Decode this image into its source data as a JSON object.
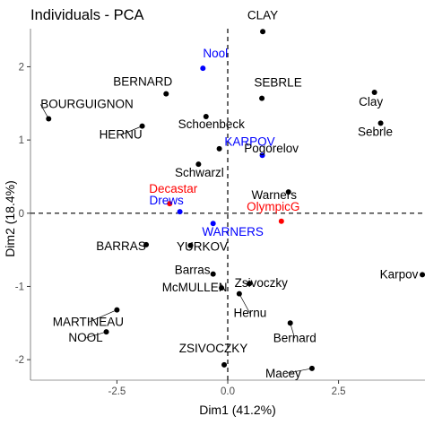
{
  "chart_data": {
    "type": "scatter",
    "title": "Individuals - PCA",
    "xlabel": "Dim1 (41.2%)",
    "ylabel": "Dim2 (18.4%)",
    "xlim": [
      -4.45,
      4.45
    ],
    "ylim": [
      -2.28,
      2.52
    ],
    "x_ticks": [
      -2.5,
      0,
      2.5
    ],
    "x_tick_labels": [
      "-2.5",
      "0.0",
      "2.5"
    ],
    "y_ticks": [
      -2,
      -1,
      0,
      1,
      2
    ],
    "y_tick_labels": [
      "-2",
      "-1",
      "0",
      "1",
      "2"
    ],
    "grid": false,
    "reference_lines": [
      {
        "axis": "x",
        "value": 0,
        "style": "dashed"
      },
      {
        "axis": "y",
        "value": 0,
        "style": "dashed"
      }
    ],
    "colors": {
      "individual": "#000000",
      "supplementary_individual": "#0000FF",
      "supplementary_category": "#FF0000"
    },
    "points": [
      {
        "label": "CLAY",
        "x": 0.79,
        "y": 2.48,
        "color": "#000000"
      },
      {
        "label": "Nool",
        "x": -0.56,
        "y": 1.98,
        "color": "#0000FF"
      },
      {
        "label": "BERNARD",
        "x": -1.39,
        "y": 1.63,
        "color": "#000000"
      },
      {
        "label": "SEBRLE",
        "x": 0.77,
        "y": 1.57,
        "color": "#000000"
      },
      {
        "label": "BOURGUIGNON",
        "x": -4.04,
        "y": 1.29,
        "color": "#000000"
      },
      {
        "label": "Schoenbeck",
        "x": -0.49,
        "y": 1.32,
        "color": "#000000"
      },
      {
        "label": "Clay",
        "x": 3.31,
        "y": 1.65,
        "color": "#000000"
      },
      {
        "label": "Sebrle",
        "x": 3.45,
        "y": 1.23,
        "color": "#000000"
      },
      {
        "label": "HERNU",
        "x": -1.93,
        "y": 1.19,
        "color": "#000000"
      },
      {
        "label": "KARPOV",
        "x": 0.78,
        "y": 0.79,
        "color": "#0000FF"
      },
      {
        "label": "Pogorelov",
        "x": -0.19,
        "y": 0.88,
        "color": "#000000"
      },
      {
        "label": "Schwarzl",
        "x": -0.66,
        "y": 0.67,
        "color": "#000000"
      },
      {
        "label": "Warners",
        "x": 1.37,
        "y": 0.29,
        "color": "#000000"
      },
      {
        "label": "Decastar",
        "x": -1.31,
        "y": 0.13,
        "color": "#FF0000"
      },
      {
        "label": "OlympicG",
        "x": 1.21,
        "y": -0.11,
        "color": "#FF0000"
      },
      {
        "label": "Drews",
        "x": -1.08,
        "y": 0.02,
        "color": "#0000FF"
      },
      {
        "label": "WARNERS",
        "x": -0.33,
        "y": -0.14,
        "color": "#0000FF"
      },
      {
        "label": "BARRAS",
        "x": -1.84,
        "y": -0.43,
        "color": "#000000"
      },
      {
        "label": "YURKOV",
        "x": -0.84,
        "y": -0.44,
        "color": "#000000"
      },
      {
        "label": "Barras",
        "x": -0.33,
        "y": -0.83,
        "color": "#000000"
      },
      {
        "label": "Zsivoczky",
        "x": 0.49,
        "y": -0.96,
        "color": "#000000"
      },
      {
        "label": "Karpov",
        "x": 4.39,
        "y": -0.84,
        "color": "#000000"
      },
      {
        "label": "McMULLEN",
        "x": -0.14,
        "y": -1.02,
        "color": "#000000"
      },
      {
        "label": "MARTINEAU",
        "x": -2.5,
        "y": -1.32,
        "color": "#000000"
      },
      {
        "label": "Hernu",
        "x": 0.26,
        "y": -1.1,
        "color": "#000000"
      },
      {
        "label": "Bernard",
        "x": 1.41,
        "y": -1.5,
        "color": "#000000"
      },
      {
        "label": "NOOL",
        "x": -2.74,
        "y": -1.62,
        "color": "#000000"
      },
      {
        "label": "ZSIVOCZKY",
        "x": -0.08,
        "y": -2.07,
        "color": "#000000"
      },
      {
        "label": "Macey",
        "x": 1.9,
        "y": -2.12,
        "color": "#000000"
      }
    ]
  }
}
